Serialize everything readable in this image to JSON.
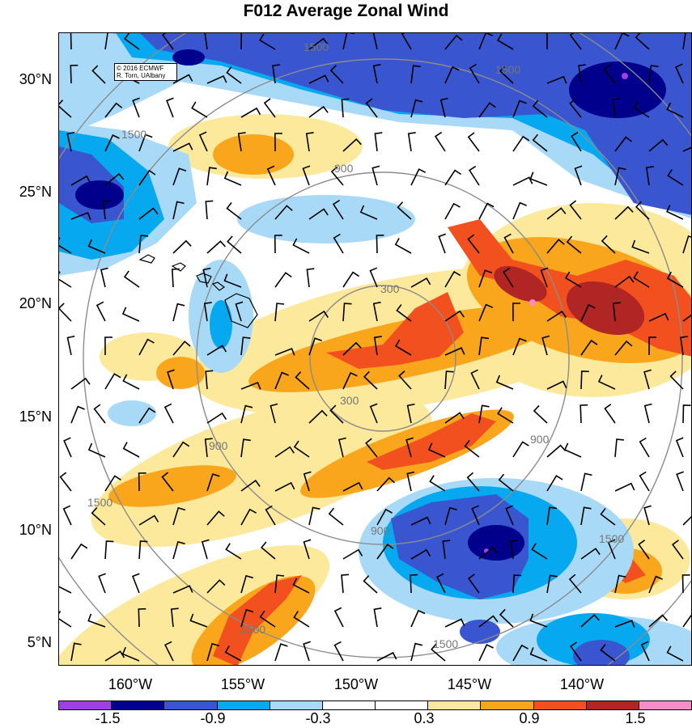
{
  "title": "F012 Average Zonal Wind",
  "credit": {
    "line1": "© 2016 ECMWF",
    "line2": "R. Torn, UAlbany"
  },
  "lat_labels": [
    "30°N",
    "25°N",
    "20°N",
    "15°N",
    "10°N",
    "5°N"
  ],
  "lon_labels": [
    "160°W",
    "155°W",
    "150°W",
    "145°W",
    "140°W"
  ],
  "contour_labels": {
    "c300": "300",
    "c900": "900",
    "c1500": "1500"
  },
  "colorbar": {
    "colors": [
      "#a040e0",
      "#00008c",
      "#3a55d0",
      "#06a8f0",
      "#a8daf7",
      "#ffffff",
      "#ffffff",
      "#fce99b",
      "#f9a61c",
      "#f2501e",
      "#b22525",
      "#f88cc8"
    ],
    "labels": [
      "-1.5",
      "-0.9",
      "-0.3",
      "0.3",
      "0.9",
      "1.5"
    ]
  },
  "map_colors": {
    "dark_blue": "#00008c",
    "mid_blue": "#3a55d0",
    "cyan": "#06a8f0",
    "light_blue": "#a8daf7",
    "light_yellow": "#fce99b",
    "orange": "#f9a61c",
    "red_orange": "#f2501e",
    "dark_red": "#b22525",
    "pink": "#f88cc8"
  }
}
